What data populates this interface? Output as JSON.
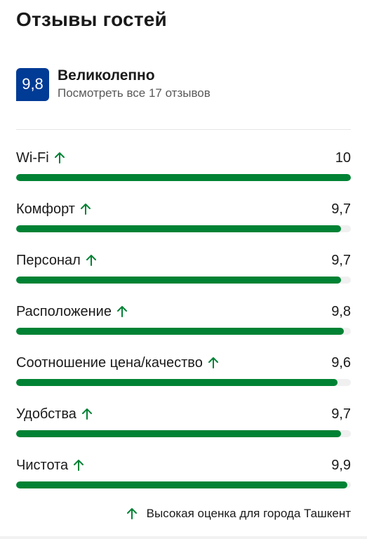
{
  "header": {
    "title": "Отзывы гостей"
  },
  "summary": {
    "score": "9,8",
    "verdict": "Великолепно",
    "all_reviews_link": "Посмотреть все 17 отзывов"
  },
  "categories": [
    {
      "label": "Wi-Fi",
      "value": "10",
      "fraction": 1.0,
      "high_for_city": true
    },
    {
      "label": "Комфорт",
      "value": "9,7",
      "fraction": 0.97,
      "high_for_city": true
    },
    {
      "label": "Персонал",
      "value": "9,7",
      "fraction": 0.97,
      "high_for_city": true
    },
    {
      "label": "Расположение",
      "value": "9,8",
      "fraction": 0.98,
      "high_for_city": true
    },
    {
      "label": "Соотношение цена/качество",
      "value": "9,6",
      "fraction": 0.96,
      "high_for_city": true
    },
    {
      "label": "Удобства",
      "value": "9,7",
      "fraction": 0.97,
      "high_for_city": true
    },
    {
      "label": "Чистота",
      "value": "9,9",
      "fraction": 0.99,
      "high_for_city": true
    }
  ],
  "footnote": {
    "text": "Высокая оценка для города Ташкент",
    "icon": "arrow-up-icon"
  },
  "colors": {
    "badge_bg": "#003b95",
    "bar_fill": "#008234",
    "bar_track": "#f0f0f0",
    "arrow": "#008234"
  }
}
